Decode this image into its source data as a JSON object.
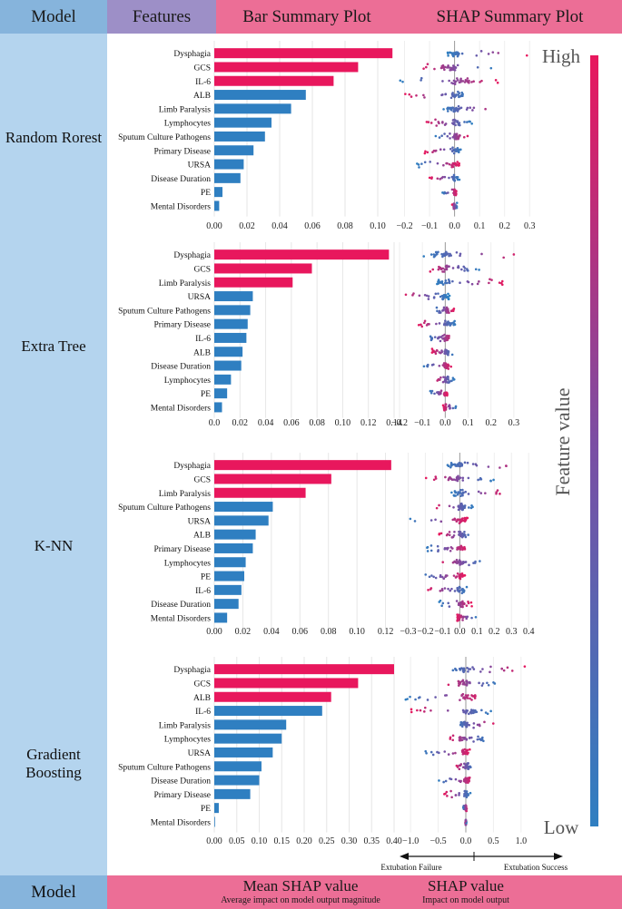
{
  "header": {
    "model": "Model",
    "features": "Features",
    "bar_plot": "Bar Summary Plot",
    "shap_plot": "SHAP Summary Plot"
  },
  "footer": {
    "model": "Model",
    "bar_axis_title": "Mean SHAP value",
    "bar_axis_subtitle": "Average impact on model output magnitude",
    "shap_axis_title": "SHAP value",
    "shap_axis_subtitle": "Impact on model output",
    "arrow_left": "Extubation Failure",
    "arrow_right": "Extubation Success"
  },
  "colorbar": {
    "high": "High",
    "low": "Low",
    "title": "Feature value",
    "color_high": "#e8175d",
    "color_low": "#2f7fc1"
  },
  "colors": {
    "bar_top": "#e8175d",
    "bar_rest": "#2f7fc1",
    "header_blue": "#86b4dc",
    "header_purple": "#9d8fc7",
    "header_pink": "#ec6e96",
    "sidebar": "#b4d4ee"
  },
  "chart_data": [
    {
      "model": "Random Rorest",
      "type": "bar",
      "categories": [
        "Dysphagia",
        "GCS",
        "IL-6",
        "ALB",
        "Limb Paralysis",
        "Lymphocytes",
        "Sputum Culture Pathogens",
        "Primary Disease",
        "URSA",
        "Disease Duration",
        "PE",
        "Mental Disorders"
      ],
      "values": [
        0.109,
        0.088,
        0.073,
        0.056,
        0.047,
        0.035,
        0.031,
        0.024,
        0.018,
        0.016,
        0.005,
        0.003
      ],
      "highlight_count": 3,
      "bar_xlim": [
        0,
        0.11
      ],
      "bar_ticks": [
        "0.00",
        "0.02",
        "0.04",
        "0.06",
        "0.08",
        "0.10"
      ],
      "bar_tick_values": [
        0,
        0.02,
        0.04,
        0.06,
        0.08,
        0.1
      ],
      "shap_xlim": [
        -0.22,
        0.31
      ],
      "shap_ticks": [
        "−0.2",
        "−0.1",
        "0.0",
        "0.1",
        "0.2",
        "0.3"
      ],
      "shap_tick_values": [
        -0.2,
        -0.1,
        0,
        0.1,
        0.2,
        0.3
      ],
      "shap_spread": [
        [
          -0.03,
          0.29
        ],
        [
          -0.15,
          0.16
        ],
        [
          -0.22,
          0.18
        ],
        [
          -0.2,
          0.06
        ],
        [
          -0.05,
          0.19
        ],
        [
          -0.12,
          0.07
        ],
        [
          -0.08,
          0.06
        ],
        [
          -0.12,
          0.03
        ],
        [
          -0.15,
          0.02
        ],
        [
          -0.1,
          0.02
        ],
        [
          -0.05,
          0.01
        ],
        [
          -0.01,
          0.01
        ]
      ]
    },
    {
      "model": "Extra Tree",
      "type": "bar",
      "categories": [
        "Dysphagia",
        "GCS",
        "Limb Paralysis",
        "URSA",
        "Sputum Culture Pathogens",
        "Primary Disease",
        "IL-6",
        "ALB",
        "Disease Duration",
        "Lymphocytes",
        "PE",
        "Mental Disorders"
      ],
      "values": [
        0.136,
        0.076,
        0.061,
        0.03,
        0.028,
        0.026,
        0.025,
        0.022,
        0.021,
        0.013,
        0.01,
        0.006
      ],
      "highlight_count": 3,
      "bar_xlim": [
        0,
        0.14
      ],
      "bar_ticks": [
        "0.0",
        "0.02",
        "0.04",
        "0.06",
        "0.08",
        "0.10",
        "0.12",
        "0.14"
      ],
      "bar_tick_values": [
        0,
        0.02,
        0.04,
        0.06,
        0.08,
        0.1,
        0.12,
        0.14
      ],
      "shap_xlim": [
        -0.2,
        0.38
      ],
      "shap_ticks": [
        "−0.2",
        "−0.1",
        "0.0",
        "0.1",
        "0.2",
        "0.3"
      ],
      "shap_tick_values": [
        -0.2,
        -0.1,
        0,
        0.1,
        0.2,
        0.3
      ],
      "shap_spread": [
        [
          -0.1,
          0.35
        ],
        [
          -0.08,
          0.15
        ],
        [
          -0.04,
          0.26
        ],
        [
          -0.19,
          0.01
        ],
        [
          -0.05,
          0.04
        ],
        [
          -0.12,
          0.05
        ],
        [
          -0.08,
          0.04
        ],
        [
          -0.06,
          0.04
        ],
        [
          -0.1,
          0.03
        ],
        [
          -0.05,
          0.04
        ],
        [
          -0.07,
          0.01
        ],
        [
          -0.01,
          0.05
        ]
      ]
    },
    {
      "model": "K-NN",
      "type": "bar",
      "categories": [
        "Dysphagia",
        "GCS",
        "Limb Paralysis",
        "Sputum Culture Pathogens",
        "URSA",
        "ALB",
        "Primary Disease",
        "Lymphocytes",
        "PE",
        "IL-6",
        "Disease Duration",
        "Mental Disorders"
      ],
      "values": [
        0.124,
        0.082,
        0.064,
        0.041,
        0.038,
        0.029,
        0.027,
        0.022,
        0.021,
        0.019,
        0.017,
        0.009
      ],
      "highlight_count": 3,
      "bar_xlim": [
        0,
        0.126
      ],
      "bar_ticks": [
        "0.00",
        "0.02",
        "0.04",
        "0.06",
        "0.08",
        "0.10",
        "0.12"
      ],
      "bar_tick_values": [
        0,
        0.02,
        0.04,
        0.06,
        0.08,
        0.1,
        0.12
      ],
      "shap_xlim": [
        -0.35,
        0.42
      ],
      "shap_ticks": [
        "−0.3",
        "−0.2",
        "−0.1",
        "0.0",
        "0.1",
        "0.2",
        "0.3",
        "0.4"
      ],
      "shap_tick_values": [
        -0.3,
        -0.2,
        -0.1,
        0,
        0.1,
        0.2,
        0.3,
        0.4
      ],
      "shap_spread": [
        [
          -0.1,
          0.4
        ],
        [
          -0.2,
          0.2
        ],
        [
          -0.05,
          0.27
        ],
        [
          -0.15,
          0.08
        ],
        [
          -0.3,
          0.05
        ],
        [
          -0.12,
          0.08
        ],
        [
          -0.2,
          0.05
        ],
        [
          -0.13,
          0.15
        ],
        [
          -0.23,
          0.03
        ],
        [
          -0.2,
          0.05
        ],
        [
          -0.12,
          0.07
        ],
        [
          -0.02,
          0.1
        ]
      ]
    },
    {
      "model": "Gradient Boosting",
      "type": "bar",
      "categories": [
        "Dysphagia",
        "GCS",
        "ALB",
        "IL-6",
        "Limb Paralysis",
        "Lymphocytes",
        "URSA",
        "Sputum Culture Pathogens",
        "Disease Duration",
        "Primary Disease",
        "PE",
        "Mental Disorders"
      ],
      "values": [
        0.4,
        0.32,
        0.26,
        0.24,
        0.16,
        0.15,
        0.13,
        0.105,
        0.1,
        0.08,
        0.01,
        0.001
      ],
      "highlight_count": 3,
      "bar_xlim": [
        0,
        0.4
      ],
      "bar_ticks": [
        "0.00",
        "0.05",
        "0.10",
        "0.15",
        "0.20",
        "0.25",
        "0.30",
        "0.35",
        "0.40"
      ],
      "bar_tick_values": [
        0,
        0.05,
        0.1,
        0.15,
        0.2,
        0.25,
        0.3,
        0.35,
        0.4
      ],
      "shap_xlim": [
        -1.2,
        1.2
      ],
      "shap_ticks": [
        "−1.0",
        "−0.5",
        "0.0",
        "0.5",
        "1.0"
      ],
      "shap_tick_values": [
        -1,
        -0.5,
        0,
        0.5,
        1
      ],
      "shap_spread": [
        [
          -0.4,
          1.1
        ],
        [
          -0.4,
          0.6
        ],
        [
          -1.1,
          0.35
        ],
        [
          -1.0,
          0.5
        ],
        [
          -0.2,
          0.55
        ],
        [
          -0.35,
          0.4
        ],
        [
          -0.8,
          0.1
        ],
        [
          -0.2,
          0.15
        ],
        [
          -0.5,
          0.15
        ],
        [
          -0.4,
          0.1
        ],
        [
          -0.05,
          0.02
        ],
        [
          -0.01,
          0.01
        ]
      ]
    }
  ]
}
